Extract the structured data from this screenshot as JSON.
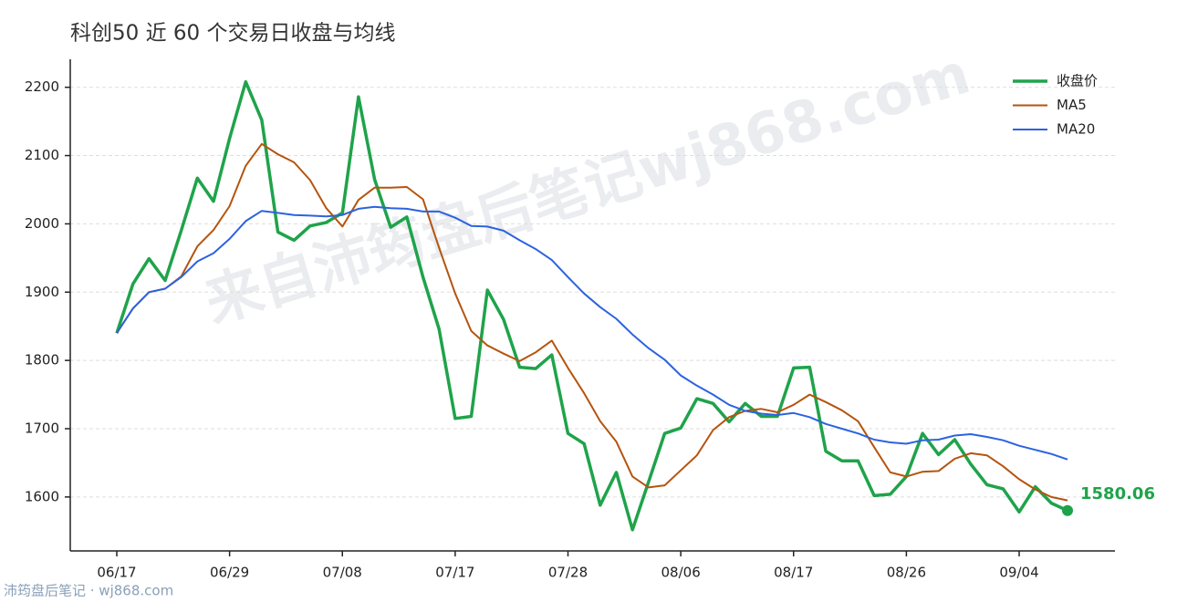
{
  "chart_data": {
    "type": "line",
    "title": "科创50 近 60 个交易日收盘与均线",
    "watermark": "来自沛筠盘后笔记wj868.com",
    "footer": "沛筠盘后笔记 · wj868.com",
    "categories": [
      "06/17",
      null,
      null,
      null,
      null,
      null,
      null,
      "06/29",
      null,
      null,
      null,
      null,
      null,
      null,
      "07/08",
      null,
      null,
      null,
      null,
      null,
      null,
      "07/17",
      null,
      null,
      null,
      null,
      null,
      null,
      "07/28",
      null,
      null,
      null,
      null,
      null,
      null,
      "08/06",
      null,
      null,
      null,
      null,
      null,
      null,
      "08/17",
      null,
      null,
      null,
      null,
      null,
      null,
      "08/26",
      null,
      null,
      null,
      null,
      null,
      null,
      "09/04",
      null,
      null,
      null
    ],
    "series": [
      {
        "name": "收盘价",
        "color": "#1fa34a",
        "width": 3.5,
        "values": [
          1840,
          1912,
          1949,
          1917,
          1990,
          2067,
          2033,
          2125,
          2208,
          2152,
          1988,
          1976,
          1997,
          2002,
          2016,
          2186,
          2065,
          1995,
          2010,
          1922,
          1846,
          1715,
          1718,
          1903,
          1860,
          1790,
          1788,
          1808,
          1693,
          1678,
          1588,
          1636,
          1552,
          1622,
          1693,
          1701,
          1744,
          1737,
          1710,
          1737,
          1718,
          1718,
          1789,
          1790,
          1667,
          1653,
          1653,
          1602,
          1604,
          1630,
          1693,
          1662,
          1684,
          1648,
          1618,
          1612,
          1578,
          1615,
          1591,
          1580.06
        ],
        "value_labels": [
          null,
          null,
          null,
          null,
          null,
          null,
          null,
          null,
          null,
          null,
          null,
          null,
          null,
          null,
          null,
          null,
          null,
          null,
          null,
          null,
          null,
          null,
          null,
          null,
          null,
          null,
          null,
          null,
          null,
          null,
          null,
          null,
          null,
          null,
          null,
          null,
          null,
          null,
          null,
          null,
          null,
          null,
          null,
          null,
          null,
          null,
          null,
          null,
          null,
          null,
          null,
          null,
          null,
          null,
          null,
          null,
          null,
          null,
          null,
          "1580.06"
        ]
      },
      {
        "name": "MA5",
        "color": "#b5540f",
        "width": 2,
        "values": [
          1840,
          1876,
          1900,
          1905,
          1923,
          1967,
          1991,
          2026,
          2085,
          2117,
          2102,
          2090,
          2064,
          2023,
          1996,
          2035,
          2053,
          2053,
          2054,
          2036,
          1965,
          1898,
          1843,
          1822,
          1810,
          1799,
          1812,
          1829,
          1789,
          1752,
          1711,
          1681,
          1630,
          1614,
          1617,
          1639,
          1661,
          1698,
          1717,
          1726,
          1729,
          1724,
          1735,
          1750,
          1739,
          1727,
          1711,
          1673,
          1636,
          1630,
          1637,
          1638,
          1656,
          1664,
          1661,
          1645,
          1626,
          1611,
          1600,
          1595
        ]
      },
      {
        "name": "MA20",
        "color": "#2b63e0",
        "width": 2,
        "values": [
          1840,
          1876,
          1900,
          1905,
          1922,
          1945,
          1957,
          1978,
          2004,
          2019,
          2016,
          2013,
          2012,
          2011,
          2013,
          2022,
          2025,
          2023,
          2022,
          2018,
          2018,
          2009,
          1997,
          1996,
          1990,
          1976,
          1963,
          1947,
          1922,
          1898,
          1878,
          1861,
          1838,
          1818,
          1801,
          1778,
          1763,
          1750,
          1735,
          1726,
          1722,
          1720,
          1723,
          1717,
          1707,
          1700,
          1693,
          1684,
          1680,
          1678,
          1683,
          1684,
          1690,
          1692,
          1688,
          1683,
          1675,
          1669,
          1663,
          1655
        ]
      }
    ],
    "ylim": [
      1521,
      2241
    ],
    "yticks": [
      1600,
      1700,
      1800,
      1900,
      2000,
      2100,
      2200
    ],
    "grid": true,
    "legend": "top-right"
  }
}
